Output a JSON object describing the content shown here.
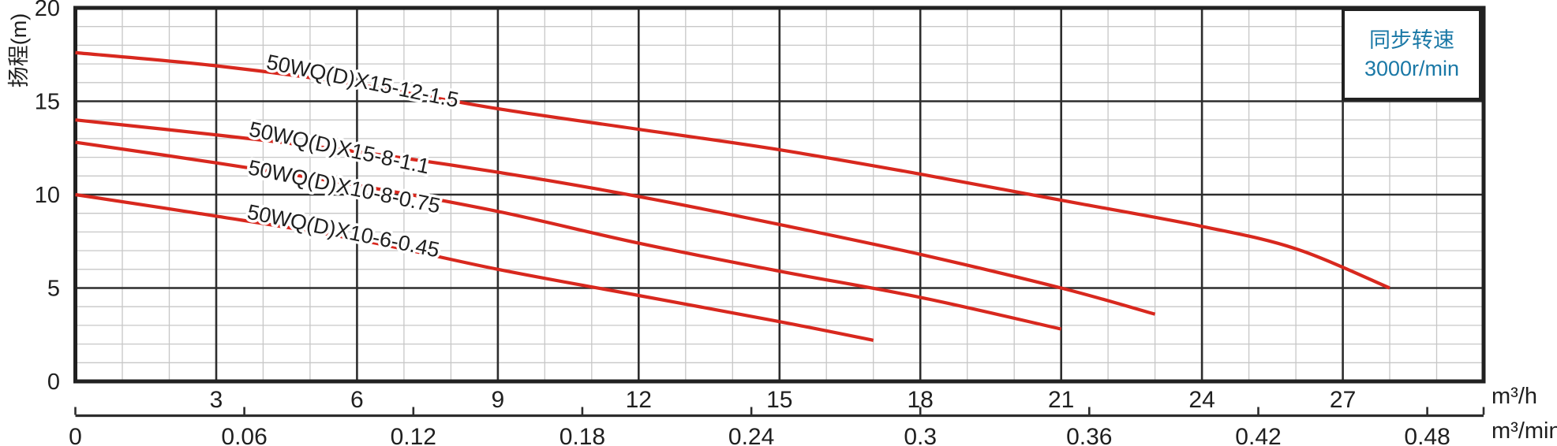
{
  "page": {
    "background": "#ffffff"
  },
  "y_axis": {
    "title": "扬程(m)",
    "range": [
      0,
      20
    ],
    "major_step": 5,
    "minor_step": 1,
    "tick_labels": [
      "0",
      "5",
      "10",
      "15",
      "20"
    ],
    "tick_values": [
      0,
      5,
      10,
      15,
      20
    ]
  },
  "x_axis_primary": {
    "unit": "m³/h",
    "range": [
      0,
      30
    ],
    "major_step": 3,
    "minor_step": 1,
    "tick_labels": [
      "3",
      "6",
      "9",
      "12",
      "15",
      "18",
      "21",
      "24",
      "27"
    ],
    "tick_values": [
      3,
      6,
      9,
      12,
      15,
      18,
      21,
      24,
      27
    ]
  },
  "x_axis_secondary": {
    "unit": "m³/min",
    "tick_labels": [
      "0",
      "0.06",
      "0.12",
      "0.18",
      "0.24",
      "0.3",
      "0.36",
      "0.42",
      "0.48"
    ],
    "tick_values": [
      0,
      0.06,
      0.12,
      0.18,
      0.24,
      0.3,
      0.36,
      0.42,
      0.48
    ],
    "conversion_to_m3h": 60
  },
  "legend": {
    "line1": "同步转速",
    "line2": "3000r/min",
    "color": "#1a78a6"
  },
  "colors": {
    "curve": "#d8281e",
    "grid_major": "#2d2d2d",
    "grid_minor": "#c7c7c7",
    "border": "#212121",
    "text": "#1f1f1f",
    "legend_text": "#1a78a6"
  },
  "chart_data": {
    "type": "line",
    "title": "",
    "xlabel_units": [
      "m³/h",
      "m³/min"
    ],
    "ylabel": "扬程(m)",
    "xlim_m3h": [
      0,
      30
    ],
    "ylim_m": [
      0,
      20
    ],
    "grid": "on",
    "legend_position": "top-right",
    "series": [
      {
        "name": "50WQ(D)X15-12-1.5",
        "points": [
          [
            0,
            17.6
          ],
          [
            3,
            16.9
          ],
          [
            6,
            15.9
          ],
          [
            9,
            14.6
          ],
          [
            12,
            13.5
          ],
          [
            15,
            12.4
          ],
          [
            18,
            11.1
          ],
          [
            21,
            9.7
          ],
          [
            24,
            8.3
          ],
          [
            26,
            7.1
          ],
          [
            28,
            5.0
          ]
        ],
        "label_anchor_q": 4.05,
        "label_anchor_h": 16.75,
        "label_angle_deg": 11.5
      },
      {
        "name": "50WQ(D)X15-8-1.1",
        "points": [
          [
            0,
            14.0
          ],
          [
            3,
            13.2
          ],
          [
            6,
            12.3
          ],
          [
            9,
            11.2
          ],
          [
            12,
            9.9
          ],
          [
            15,
            8.4
          ],
          [
            18,
            6.8
          ],
          [
            21,
            5.0
          ],
          [
            23,
            3.6
          ]
        ],
        "label_anchor_q": 3.68,
        "label_anchor_h": 13.15,
        "label_angle_deg": 12.0
      },
      {
        "name": "50WQ(D)X10-8-0.75",
        "points": [
          [
            0,
            12.8
          ],
          [
            3,
            11.7
          ],
          [
            6,
            10.5
          ],
          [
            9,
            9.1
          ],
          [
            12,
            7.4
          ],
          [
            15,
            5.9
          ],
          [
            18,
            4.5
          ],
          [
            21,
            2.8
          ]
        ],
        "label_anchor_q": 3.66,
        "label_anchor_h": 11.1,
        "label_angle_deg": 11.6
      },
      {
        "name": "50WQ(D)X10-6-0.45",
        "points": [
          [
            0,
            10.0
          ],
          [
            3,
            8.85
          ],
          [
            6,
            7.6
          ],
          [
            9,
            6.0
          ],
          [
            12,
            4.6
          ],
          [
            15,
            3.2
          ],
          [
            17,
            2.2
          ]
        ],
        "label_anchor_q": 3.64,
        "label_anchor_h": 8.72,
        "label_angle_deg": 11.5
      }
    ]
  }
}
